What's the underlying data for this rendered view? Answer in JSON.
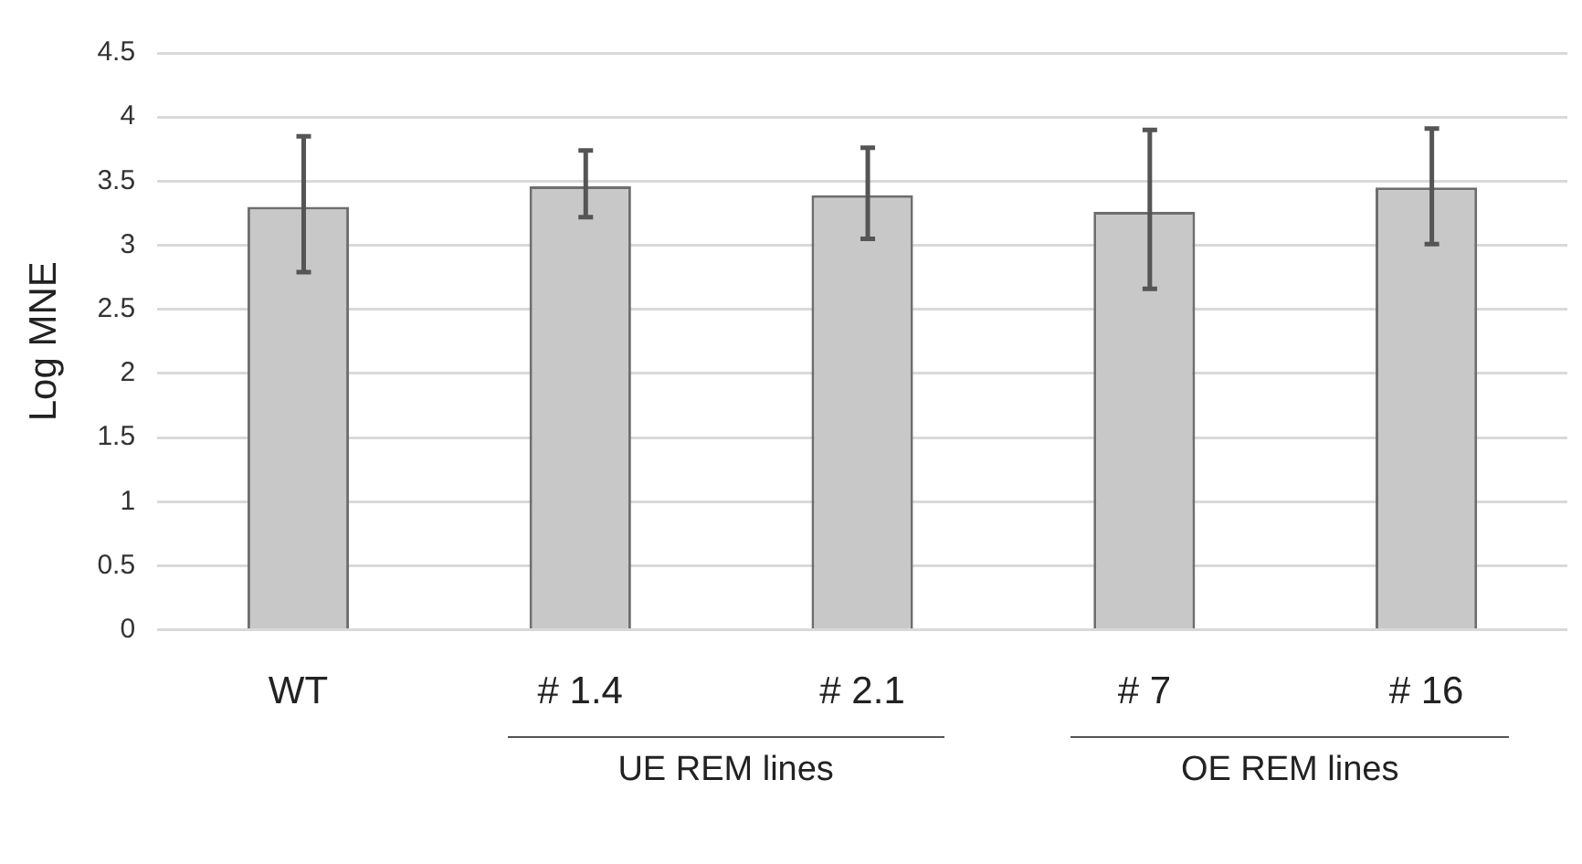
{
  "chart_data": {
    "type": "bar",
    "ylabel": "Log MNE",
    "categories": [
      "WT",
      "# 1.4",
      "# 2.1",
      "# 7",
      "# 16"
    ],
    "values": [
      3.3,
      3.46,
      3.39,
      3.26,
      3.45
    ],
    "errors": [
      [
        2.79,
        3.85
      ],
      [
        3.22,
        3.74
      ],
      [
        3.05,
        3.76
      ],
      [
        2.66,
        3.9
      ],
      [
        3.01,
        3.91
      ]
    ],
    "color": "#c8c8c8",
    "ylim": [
      0,
      4.5
    ],
    "yticks": [
      0,
      0.5,
      1,
      1.5,
      2,
      2.5,
      3,
      3.5,
      4,
      4.5
    ],
    "grid": "y",
    "legend": false,
    "annotations": [
      "UE REM lines",
      "OE REM lines"
    ]
  }
}
